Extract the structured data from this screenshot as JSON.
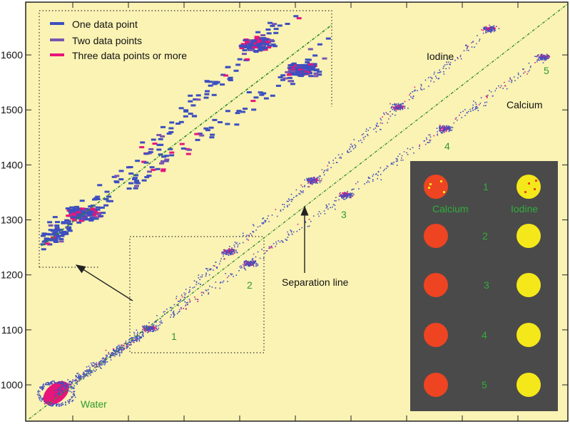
{
  "chart_data": {
    "type": "scatter",
    "title": "",
    "xlabel": "",
    "ylabel": "",
    "ylim": [
      934,
      1696
    ],
    "xlim": [
      930,
      1910
    ],
    "x_tick_labels_shown": false,
    "y_ticks": [
      {
        "value": 1000,
        "label": "1000"
      },
      {
        "value": 1100,
        "label": "1100"
      },
      {
        "value": 1200,
        "label": "1200"
      },
      {
        "value": 1300,
        "label": "1300"
      },
      {
        "value": 1400,
        "label": "1400"
      },
      {
        "value": 1500,
        "label": "1500"
      },
      {
        "value": 1600,
        "label": "1600"
      }
    ],
    "grid": false,
    "background": "#fbf3b4",
    "legend": {
      "placement": "top-left",
      "entries": [
        {
          "label": "One data point",
          "color": "#3d4fbf"
        },
        {
          "label": "Two data points",
          "color": "#7a55b0"
        },
        {
          "label": "Three data points or more",
          "color": "#e8157a"
        }
      ]
    },
    "separation_line": {
      "label": "Separation line",
      "from": [
        936,
        938
      ],
      "to": [
        1910,
        1693
      ],
      "color": "#2e8b2e"
    },
    "clusters": [
      {
        "name": "Water",
        "x": 985,
        "y": 985,
        "label": "Water"
      },
      {
        "name": "Calcium/Iodine 1",
        "x": 1153,
        "y": 1103,
        "label": "1"
      },
      {
        "name": "Iodine 2",
        "x": 1296,
        "y": 1243
      },
      {
        "name": "Calcium 2",
        "x": 1334,
        "y": 1222,
        "label": "2"
      },
      {
        "name": "Iodine 3",
        "x": 1448,
        "y": 1372
      },
      {
        "name": "Calcium 3",
        "x": 1508,
        "y": 1346,
        "label": "3"
      },
      {
        "name": "Iodine 4",
        "x": 1603,
        "y": 1506
      },
      {
        "name": "Calcium 4",
        "x": 1687,
        "y": 1467,
        "label": "4"
      },
      {
        "name": "Iodine 5",
        "x": 1768,
        "y": 1648
      },
      {
        "name": "Calcium 5",
        "x": 1865,
        "y": 1597,
        "label": "5"
      }
    ],
    "annotations": {
      "iodine": "Iodine",
      "calcium": "Calcium",
      "water": "Water",
      "separation": "Separation line",
      "n1": "1",
      "n2": "2",
      "n3": "3",
      "n4": "4",
      "n5": "5"
    },
    "inset_image": {
      "background": "#4a4a4a",
      "calcium_color": "#ee4422",
      "iodine_color": "#f5e81a",
      "label_color": "#2fae3a",
      "col_calcium": "Calcium",
      "col_iodine": "Iodine",
      "rows": [
        "1",
        "2",
        "3",
        "4",
        "5"
      ]
    }
  }
}
